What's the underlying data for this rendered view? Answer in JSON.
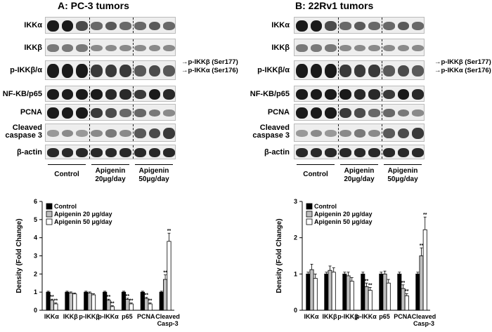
{
  "panels": [
    {
      "title": "A: PC-3 tumors",
      "blot_labels": [
        "IKKα",
        "IKKβ",
        "p-IKKβ/α",
        "NF-KB/p65",
        "PCNA",
        "Cleaved\ncaspase 3",
        "β-actin"
      ],
      "annotations": [
        "p-IKKβ (Ser177)",
        "p-IKKα (Ser176)"
      ],
      "groups": [
        "Control",
        "Apigenin\n20μg/day",
        "Apigenin\n50μg/day"
      ]
    },
    {
      "title": "B: 22Rv1 tumors",
      "blot_labels": [
        "IKKα",
        "IKKβ",
        "p-IKKβ/α",
        "NF-KB/p65",
        "PCNA",
        "Cleaved\ncaspase 3",
        "β-actin"
      ],
      "annotations": [
        "p-IKKβ (Ser177)",
        "p-IKKα (Ser176)"
      ],
      "groups": [
        "Control",
        "Apigenin\n20μg/day",
        "Apigenin\n50μg/day"
      ]
    }
  ],
  "chart_data": [
    {
      "type": "bar",
      "ylabel": "Density (Fold Change)",
      "ylim": [
        0,
        6
      ],
      "yticks": [
        0,
        1,
        2,
        3,
        4,
        5,
        6
      ],
      "categories": [
        "IKKα",
        "IKKβ",
        "p-IKKβ",
        "p-IKKα",
        "p65",
        "PCNA",
        "Cleaved\nCasp-3"
      ],
      "legend_position": "top-left",
      "series": [
        {
          "name": "Control",
          "color": "#000000",
          "values": [
            1.0,
            1.0,
            1.0,
            1.0,
            1.0,
            1.0,
            1.0
          ],
          "errors": [
            0.05,
            0.05,
            0.05,
            0.05,
            0.05,
            0.05,
            0.05
          ]
        },
        {
          "name": "Apigenin 20 μg/day",
          "color": "#bfbfbf",
          "values": [
            0.55,
            0.95,
            0.95,
            0.55,
            0.6,
            0.65,
            1.7
          ],
          "errors": [
            0.06,
            0.06,
            0.06,
            0.06,
            0.06,
            0.06,
            0.25
          ],
          "sig": [
            "**",
            "",
            "",
            "**",
            "**",
            "**",
            "**"
          ]
        },
        {
          "name": "Apigenin 50 μg/day",
          "color": "#ffffff",
          "values": [
            0.35,
            0.9,
            0.85,
            0.2,
            0.35,
            0.35,
            3.8
          ],
          "errors": [
            0.05,
            0.05,
            0.06,
            0.05,
            0.05,
            0.05,
            0.45
          ],
          "sig": [
            "**",
            "",
            "",
            "**",
            "**",
            "**",
            "**"
          ]
        }
      ]
    },
    {
      "type": "bar",
      "ylabel": "Density (Fold Change)",
      "ylim": [
        0,
        3
      ],
      "yticks": [
        0,
        1,
        2,
        3
      ],
      "categories": [
        "IKKα",
        "IKKβ",
        "p-IKKβ",
        "p-IKKα",
        "p65",
        "PCNA",
        "Cleaved\nCasp-3"
      ],
      "legend_position": "top-left",
      "series": [
        {
          "name": "Control",
          "color": "#000000",
          "values": [
            1.0,
            1.0,
            1.0,
            1.0,
            1.0,
            1.0,
            1.0
          ],
          "errors": [
            0.05,
            0.05,
            0.05,
            0.05,
            0.05,
            0.05,
            0.05
          ]
        },
        {
          "name": "Apigenin 20 μg/day",
          "color": "#bfbfbf",
          "values": [
            1.12,
            1.1,
            0.95,
            0.65,
            1.0,
            0.6,
            1.5
          ],
          "errors": [
            0.15,
            0.12,
            0.1,
            0.1,
            0.08,
            0.1,
            0.22
          ],
          "sig": [
            "",
            "",
            "",
            "**",
            "",
            "**",
            "**"
          ]
        },
        {
          "name": "Apigenin 50 μg/day",
          "color": "#ffffff",
          "values": [
            0.88,
            1.05,
            0.8,
            0.55,
            0.75,
            0.4,
            2.22
          ],
          "errors": [
            0.12,
            0.12,
            0.1,
            0.08,
            0.1,
            0.06,
            0.35
          ],
          "sig": [
            "",
            "",
            "",
            "**",
            "",
            "**",
            "**"
          ]
        }
      ]
    }
  ]
}
